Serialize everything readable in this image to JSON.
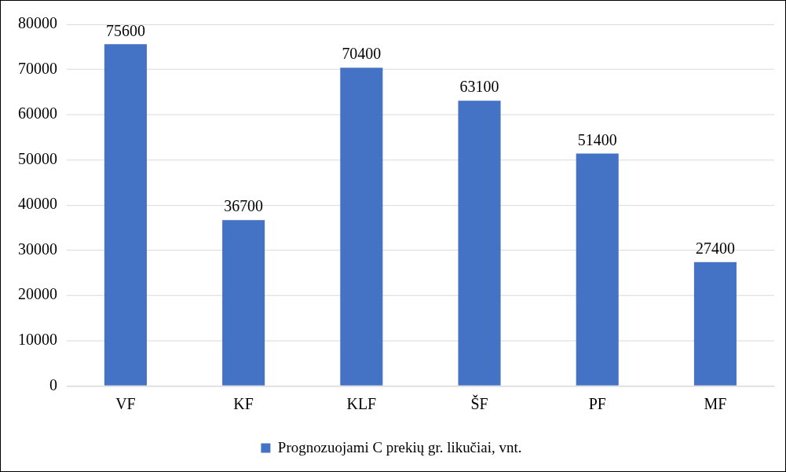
{
  "chart_data": {
    "type": "bar",
    "categories": [
      "VF",
      "KF",
      "KLF",
      "ŠF",
      "PF",
      "MF"
    ],
    "series": [
      {
        "name": "Prognozuojami C prekių gr. likučiai, vnt.",
        "color": "#4472c4",
        "values": [
          75600,
          36700,
          70400,
          63100,
          51400,
          27400
        ]
      }
    ],
    "ylim": [
      0,
      80000
    ],
    "yticks": [
      0,
      10000,
      20000,
      30000,
      40000,
      50000,
      60000,
      70000,
      80000
    ],
    "grid": "y",
    "legend": "bottom",
    "data_labels": true
  }
}
